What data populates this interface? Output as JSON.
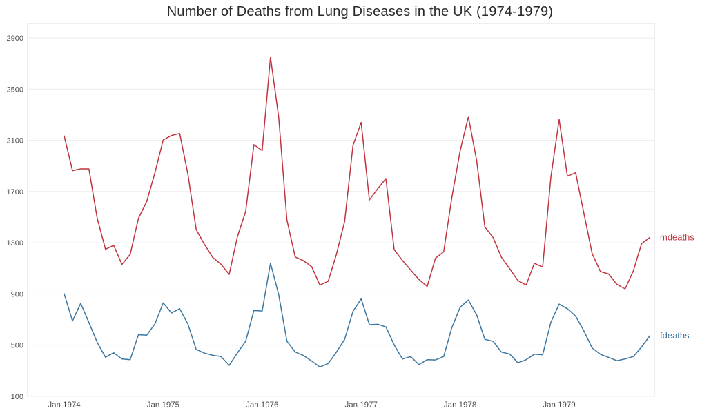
{
  "chart_data": {
    "type": "line",
    "title": "Number of Deaths from Lung Diseases in the UK (1974-1979)",
    "xlabel": "",
    "ylabel": "",
    "x_tick_labels": [
      "Jan 1974",
      "Jan 1975",
      "Jan 1976",
      "Jan 1977",
      "Jan 1978",
      "Jan 1979"
    ],
    "x_tick_month_indices": [
      0,
      12,
      24,
      36,
      48,
      60
    ],
    "y_ticks": [
      100,
      500,
      900,
      1300,
      1700,
      2100,
      2500,
      2900
    ],
    "ylim": [
      100,
      2900
    ],
    "n_points": 72,
    "x_unit": "month",
    "x_span": "Jan 1974 - Dec 1979",
    "grid": "horizontal-light",
    "legend_position": "end-of-line-labels-right",
    "series": [
      {
        "name": "mdeaths",
        "color": "#c0333d",
        "values": [
          2134,
          1863,
          1877,
          1877,
          1492,
          1249,
          1280,
          1131,
          1209,
          1492,
          1621,
          1846,
          2103,
          2137,
          2153,
          1833,
          1403,
          1288,
          1186,
          1133,
          1053,
          1347,
          1545,
          2066,
          2020,
          2750,
          2283,
          1479,
          1189,
          1160,
          1113,
          970,
          999,
          1208,
          1467,
          2059,
          2240,
          1634,
          1722,
          1801,
          1246,
          1162,
          1087,
          1013,
          959,
          1179,
          1229,
          1655,
          2019,
          2284,
          1942,
          1423,
          1340,
          1187,
          1098,
          1004,
          970,
          1140,
          1110,
          1812,
          2263,
          1820,
          1846,
          1531,
          1215,
          1075,
          1056,
          975,
          940,
          1081,
          1294,
          1341
        ]
      },
      {
        "name": "fdeaths",
        "color": "#3c76a0",
        "values": [
          901,
          689,
          827,
          677,
          522,
          406,
          441,
          393,
          387,
          582,
          578,
          666,
          830,
          752,
          785,
          664,
          467,
          438,
          421,
          412,
          343,
          440,
          531,
          771,
          767,
          1141,
          896,
          532,
          447,
          420,
          376,
          330,
          357,
          445,
          546,
          764,
          862,
          660,
          663,
          643,
          502,
          392,
          411,
          348,
          387,
          385,
          411,
          638,
          796,
          853,
          737,
          546,
          530,
          446,
          431,
          362,
          387,
          430,
          425,
          679,
          821,
          785,
          727,
          612,
          478,
          429,
          405,
          379,
          393,
          411,
          487,
          574
        ]
      }
    ]
  },
  "style": {
    "background": "#ffffff",
    "panel_border": "#dcdcdc",
    "gridline": "#ebebeb",
    "tick_text": "#4d4d4d",
    "title_text": "#2a2a2a"
  }
}
